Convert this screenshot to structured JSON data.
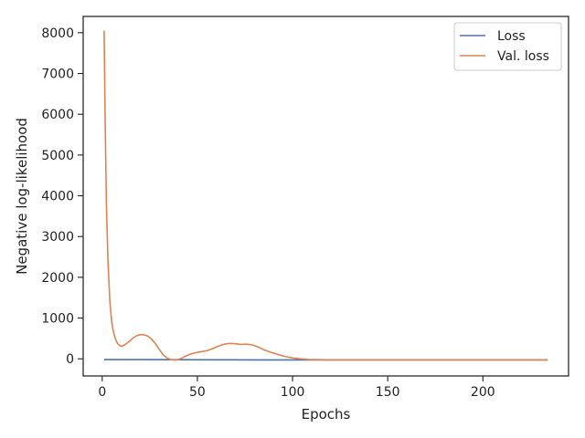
{
  "chart_data": {
    "type": "line",
    "title": "",
    "xlabel": "Epochs",
    "ylabel": "Negative log-likelihood",
    "xlim": [
      -10,
      245
    ],
    "ylim": [
      -420,
      8400
    ],
    "xticks": [
      0,
      50,
      100,
      150,
      200
    ],
    "yticks": [
      0,
      1000,
      2000,
      3000,
      4000,
      5000,
      6000,
      7000,
      8000
    ],
    "grid": false,
    "legend": "top-right",
    "series": [
      {
        "name": "Loss",
        "color": "#4c72b0",
        "x": [
          1,
          10,
          20,
          40,
          60,
          80,
          100,
          120,
          150,
          180,
          210,
          234
        ],
        "y": [
          -20,
          -20,
          -20,
          -22,
          -24,
          -25,
          -26,
          -27,
          -27,
          -27,
          -27,
          -27
        ]
      },
      {
        "name": "Val. loss",
        "color": "#dd8452",
        "x": [
          1,
          1.6,
          2.2,
          3,
          4,
          5,
          6,
          7,
          8,
          9,
          10,
          11,
          12,
          14,
          16,
          18,
          20,
          22,
          24,
          26,
          28,
          30,
          32,
          34,
          36,
          38,
          40,
          42,
          44,
          46,
          48,
          50,
          52,
          55,
          58,
          61,
          64,
          67,
          70,
          73,
          76,
          79,
          82,
          85,
          88,
          92,
          96,
          100,
          104,
          108,
          112,
          120,
          130,
          150,
          175,
          200,
          234
        ],
        "y": [
          8050,
          5600,
          3800,
          2400,
          1400,
          900,
          640,
          480,
          380,
          330,
          310,
          320,
          350,
          420,
          500,
          565,
          595,
          590,
          555,
          480,
          370,
          230,
          100,
          20,
          -20,
          -30,
          -20,
          20,
          70,
          110,
          140,
          160,
          175,
          200,
          250,
          310,
          360,
          380,
          370,
          355,
          360,
          340,
          290,
          220,
          170,
          110,
          60,
          20,
          0,
          -15,
          -20,
          -25,
          -25,
          -25,
          -25,
          -25,
          -25
        ]
      }
    ]
  }
}
